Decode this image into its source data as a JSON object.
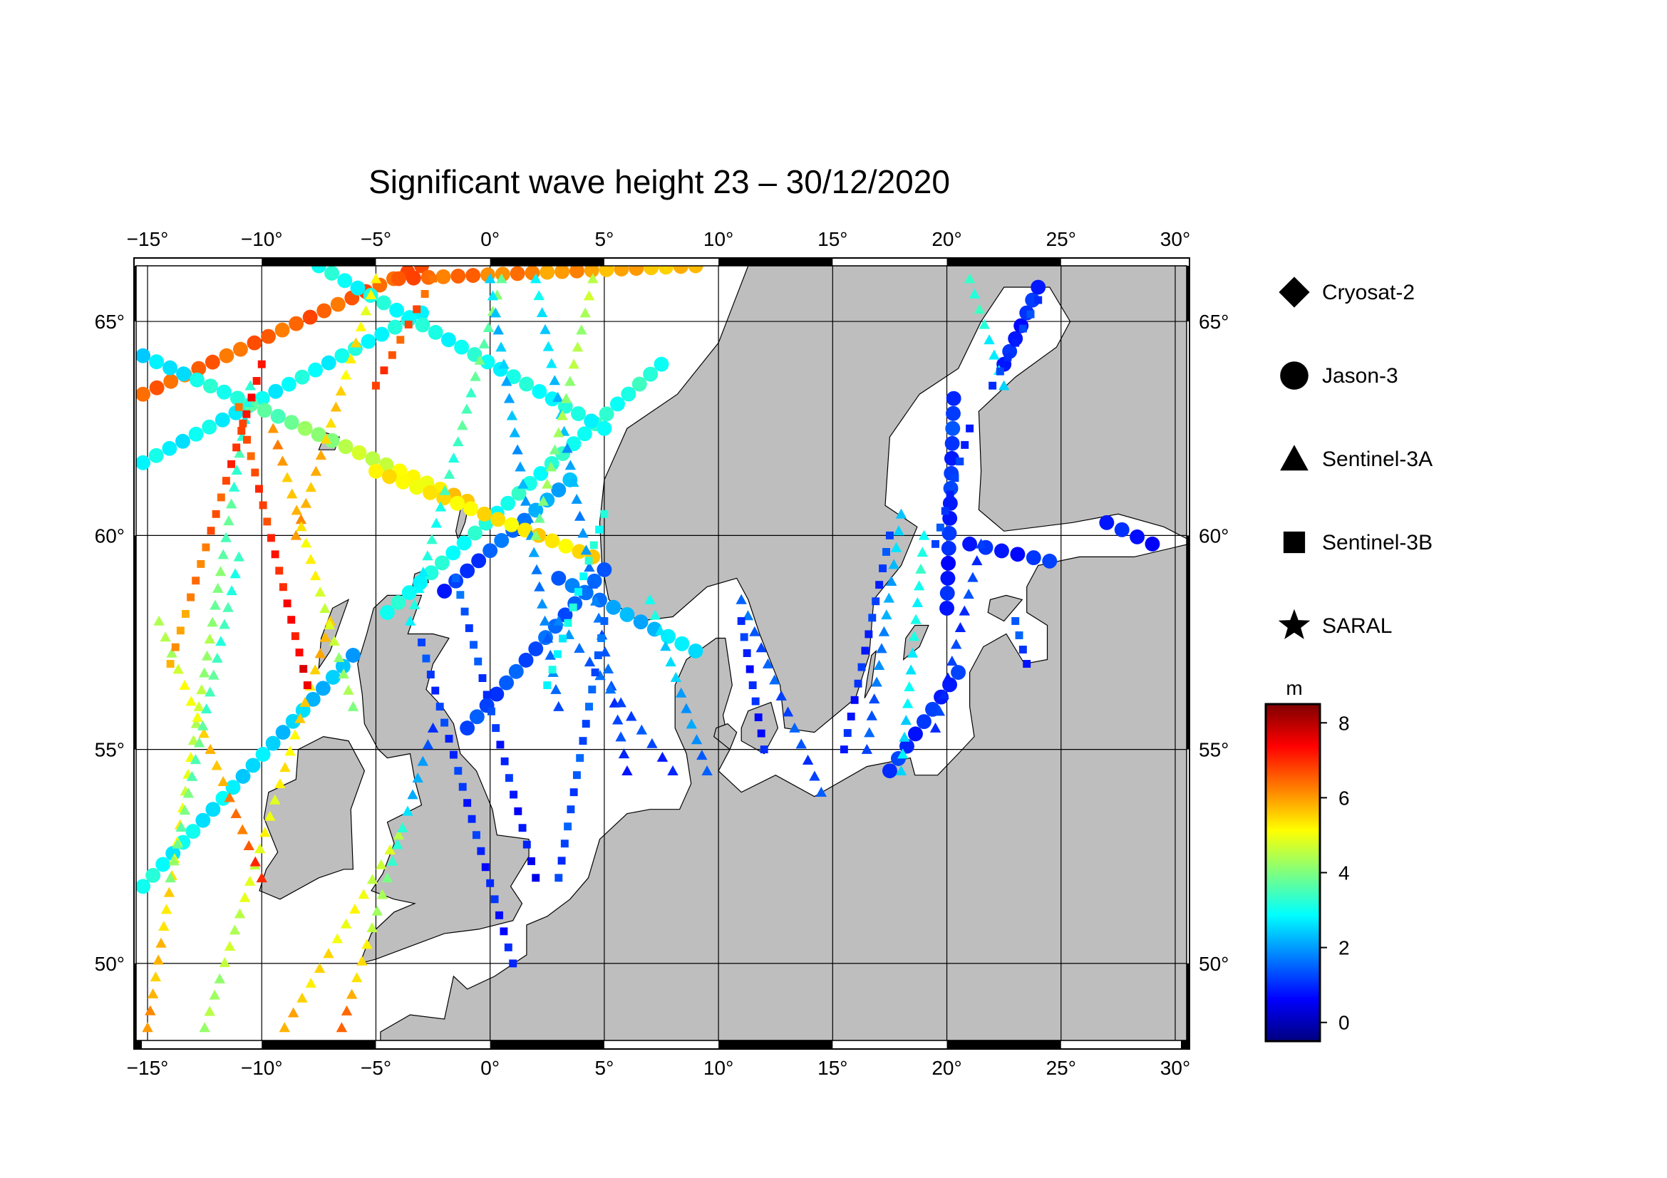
{
  "title": "Significant wave height 23 – 30/12/2020",
  "map": {
    "lon_ticks": [
      -15,
      -10,
      -5,
      0,
      5,
      10,
      15,
      20,
      25,
      30
    ],
    "lat_ticks": [
      50,
      55,
      60,
      65
    ],
    "lon_range": [
      -15.5,
      30.5
    ],
    "lat_range": [
      48.2,
      66.3
    ],
    "grid": true,
    "land_color": "#bebebe",
    "sea_color": "#ffffff",
    "degree_symbol": "°"
  },
  "legend": {
    "items": [
      {
        "label": "Cryosat-2",
        "shape": "diamond"
      },
      {
        "label": "Jason-3",
        "shape": "circle"
      },
      {
        "label": "Sentinel-3A",
        "shape": "triangle"
      },
      {
        "label": "Sentinel-3B",
        "shape": "square"
      },
      {
        "label": "SARAL",
        "shape": "star"
      }
    ]
  },
  "colorbar": {
    "unit": "m",
    "min": -0.5,
    "max": 8.5,
    "ticks": [
      0,
      2,
      4,
      6,
      8
    ],
    "colormap": [
      "#00007f",
      "#0000ff",
      "#007fff",
      "#00ffff",
      "#7fff7f",
      "#ffff00",
      "#ff7f00",
      "#ff0000",
      "#7f0000"
    ]
  },
  "chart_data": {
    "type": "scatter",
    "title": "Significant wave height 23 – 30/12/2020",
    "value_unit": "m",
    "tracks": [
      {
        "satellite": "Jason-3",
        "shape": "circle",
        "from": [
          -15.2,
          51.8
        ],
        "to": [
          -6.0,
          57.2
        ],
        "swh": [
          3.0,
          2.2
        ]
      },
      {
        "satellite": "Jason-3",
        "shape": "circle",
        "from": [
          -15.2,
          61.7
        ],
        "to": [
          -3.0,
          65.2
        ],
        "swh": [
          2.8,
          3.0
        ]
      },
      {
        "satellite": "Jason-3",
        "shape": "circle",
        "from": [
          -15.2,
          63.3
        ],
        "to": [
          -3.0,
          66.3
        ],
        "swh": [
          6.4,
          6.6
        ]
      },
      {
        "satellite": "Jason-3",
        "shape": "circle",
        "from": [
          -15.2,
          64.2
        ],
        "to": [
          -1.0,
          60.8
        ],
        "swh": [
          2.4,
          5.6
        ]
      },
      {
        "satellite": "Jason-3",
        "shape": "circle",
        "from": [
          -2.0,
          58.7
        ],
        "to": [
          3.5,
          61.3
        ],
        "swh": [
          0.8,
          2.4
        ]
      },
      {
        "satellite": "Jason-3",
        "shape": "circle",
        "from": [
          -1.0,
          55.5
        ],
        "to": [
          5.0,
          59.2
        ],
        "swh": [
          1.2,
          1.6
        ]
      },
      {
        "satellite": "Jason-3",
        "shape": "circle",
        "from": [
          -4.5,
          58.2
        ],
        "to": [
          7.5,
          64.0
        ],
        "swh": [
          3.0,
          3.2
        ]
      },
      {
        "satellite": "Jason-3",
        "shape": "circle",
        "from": [
          -7.5,
          66.3
        ],
        "to": [
          5.0,
          62.5
        ],
        "swh": [
          3.0,
          3.0
        ]
      },
      {
        "satellite": "Jason-3",
        "shape": "circle",
        "from": [
          -4.0,
          66.0
        ],
        "to": [
          9.0,
          66.3
        ],
        "swh": [
          6.6,
          5.6
        ]
      },
      {
        "satellite": "Jason-3",
        "shape": "circle",
        "from": [
          -5.0,
          61.5
        ],
        "to": [
          4.5,
          59.5
        ],
        "swh": [
          5.2,
          5.4
        ]
      },
      {
        "satellite": "Jason-3",
        "shape": "circle",
        "from": [
          3.0,
          59.0
        ],
        "to": [
          9.0,
          57.3
        ],
        "swh": [
          1.4,
          2.8
        ]
      },
      {
        "satellite": "Jason-3",
        "shape": "circle",
        "from": [
          20.0,
          58.3
        ],
        "to": [
          20.3,
          63.2
        ],
        "swh": [
          0.8,
          1.2
        ]
      },
      {
        "satellite": "Jason-3",
        "shape": "circle",
        "from": [
          17.5,
          54.5
        ],
        "to": [
          20.5,
          56.8
        ],
        "swh": [
          1.0,
          1.0
        ]
      },
      {
        "satellite": "Jason-3",
        "shape": "circle",
        "from": [
          21.0,
          59.8
        ],
        "to": [
          24.5,
          59.4
        ],
        "swh": [
          0.8,
          1.0
        ]
      },
      {
        "satellite": "Jason-3",
        "shape": "circle",
        "from": [
          22.5,
          64.0
        ],
        "to": [
          24.0,
          65.8
        ],
        "swh": [
          0.8,
          1.0
        ]
      },
      {
        "satellite": "Jason-3",
        "shape": "circle",
        "from": [
          27.0,
          60.3
        ],
        "to": [
          29.0,
          59.8
        ],
        "swh": [
          0.8,
          0.8
        ]
      },
      {
        "satellite": "Sentinel-3A",
        "shape": "triangle",
        "from": [
          -15.0,
          48.5
        ],
        "to": [
          -10.5,
          63.5
        ],
        "swh": [
          6.0,
          3.0
        ]
      },
      {
        "satellite": "Sentinel-3A",
        "shape": "triangle",
        "from": [
          -12.5,
          48.5
        ],
        "to": [
          -7.0,
          58.0
        ],
        "swh": [
          4.2,
          5.8
        ]
      },
      {
        "satellite": "Sentinel-3A",
        "shape": "triangle",
        "from": [
          -9.0,
          48.5
        ],
        "to": [
          -4.0,
          53.0
        ],
        "swh": [
          5.8,
          4.5
        ]
      },
      {
        "satellite": "Sentinel-3A",
        "shape": "triangle",
        "from": [
          -6.5,
          48.5
        ],
        "to": [
          -2.5,
          55.5
        ],
        "swh": [
          6.5,
          1.2
        ]
      },
      {
        "satellite": "Sentinel-3A",
        "shape": "triangle",
        "from": [
          -10.0,
          52.0
        ],
        "to": [
          -14.5,
          58.0
        ],
        "swh": [
          7.0,
          4.2
        ]
      },
      {
        "satellite": "Sentinel-3A",
        "shape": "triangle",
        "from": [
          -14.0,
          52.0
        ],
        "to": [
          -11.0,
          59.5
        ],
        "swh": [
          4.0,
          3.2
        ]
      },
      {
        "satellite": "Sentinel-3A",
        "shape": "triangle",
        "from": [
          -8.5,
          60.0
        ],
        "to": [
          -5.0,
          66.0
        ],
        "swh": [
          6.0,
          5.0
        ]
      },
      {
        "satellite": "Sentinel-3A",
        "shape": "triangle",
        "from": [
          -6.0,
          56.0
        ],
        "to": [
          -9.5,
          62.5
        ],
        "swh": [
          4.0,
          6.2
        ]
      },
      {
        "satellite": "Sentinel-3A",
        "shape": "triangle",
        "from": [
          -3.5,
          58.0
        ],
        "to": [
          0.5,
          66.0
        ],
        "swh": [
          2.8,
          4.0
        ]
      },
      {
        "satellite": "Sentinel-3A",
        "shape": "triangle",
        "from": [
          0.0,
          66.0
        ],
        "to": [
          3.0,
          56.0
        ],
        "swh": [
          2.5,
          1.5
        ]
      },
      {
        "satellite": "Sentinel-3A",
        "shape": "triangle",
        "from": [
          2.0,
          66.0
        ],
        "to": [
          6.0,
          54.5
        ],
        "swh": [
          2.8,
          1.0
        ]
      },
      {
        "satellite": "Sentinel-3A",
        "shape": "triangle",
        "from": [
          3.0,
          58.0
        ],
        "to": [
          8.0,
          54.5
        ],
        "swh": [
          1.8,
          1.0
        ]
      },
      {
        "satellite": "Sentinel-3A",
        "shape": "triangle",
        "from": [
          4.5,
          66.0
        ],
        "to": [
          2.0,
          60.0
        ],
        "swh": [
          4.5,
          4.0
        ]
      },
      {
        "satellite": "Sentinel-3A",
        "shape": "triangle",
        "from": [
          7.0,
          58.5
        ],
        "to": [
          9.5,
          54.5
        ],
        "swh": [
          3.0,
          1.5
        ]
      },
      {
        "satellite": "Sentinel-3A",
        "shape": "triangle",
        "from": [
          11.0,
          58.5
        ],
        "to": [
          14.5,
          54.0
        ],
        "swh": [
          1.5,
          1.2
        ]
      },
      {
        "satellite": "Sentinel-3A",
        "shape": "triangle",
        "from": [
          16.5,
          55.0
        ],
        "to": [
          18.0,
          60.5
        ],
        "swh": [
          1.2,
          2.6
        ]
      },
      {
        "satellite": "Sentinel-3A",
        "shape": "triangle",
        "from": [
          18.0,
          54.5
        ],
        "to": [
          19.0,
          60.0
        ],
        "swh": [
          2.5,
          3.2
        ]
      },
      {
        "satellite": "Sentinel-3A",
        "shape": "triangle",
        "from": [
          19.5,
          55.5
        ],
        "to": [
          21.5,
          59.8
        ],
        "swh": [
          1.0,
          1.2
        ]
      },
      {
        "satellite": "Sentinel-3A",
        "shape": "triangle",
        "from": [
          22.5,
          63.5
        ],
        "to": [
          21.0,
          66.0
        ],
        "swh": [
          2.5,
          3.5
        ]
      },
      {
        "satellite": "Sentinel-3B",
        "shape": "square",
        "from": [
          -14.0,
          57.0
        ],
        "to": [
          -10.0,
          64.0
        ],
        "swh": [
          5.8,
          7.4
        ]
      },
      {
        "satellite": "Sentinel-3B",
        "shape": "square",
        "from": [
          -8.0,
          56.5
        ],
        "to": [
          -11.0,
          63.0
        ],
        "swh": [
          7.5,
          6.5
        ]
      },
      {
        "satellite": "Sentinel-3B",
        "shape": "square",
        "from": [
          -5.0,
          63.5
        ],
        "to": [
          -2.5,
          66.0
        ],
        "swh": [
          6.8,
          6.5
        ]
      },
      {
        "satellite": "Sentinel-3B",
        "shape": "square",
        "from": [
          -3.0,
          57.5
        ],
        "to": [
          1.0,
          50.0
        ],
        "swh": [
          1.2,
          0.8
        ]
      },
      {
        "satellite": "Sentinel-3B",
        "shape": "square",
        "from": [
          -1.5,
          59.0
        ],
        "to": [
          2.0,
          52.0
        ],
        "swh": [
          1.5,
          0.6
        ]
      },
      {
        "satellite": "Sentinel-3B",
        "shape": "square",
        "from": [
          2.5,
          56.5
        ],
        "to": [
          5.0,
          60.5
        ],
        "swh": [
          2.8,
          3.2
        ]
      },
      {
        "satellite": "Sentinel-3B",
        "shape": "square",
        "from": [
          5.0,
          58.0
        ],
        "to": [
          3.0,
          52.0
        ],
        "swh": [
          1.5,
          1.2
        ]
      },
      {
        "satellite": "Sentinel-3B",
        "shape": "square",
        "from": [
          11.0,
          58.0
        ],
        "to": [
          12.0,
          55.0
        ],
        "swh": [
          1.0,
          0.8
        ]
      },
      {
        "satellite": "Sentinel-3B",
        "shape": "square",
        "from": [
          15.5,
          55.0
        ],
        "to": [
          17.5,
          60.0
        ],
        "swh": [
          0.8,
          1.2
        ]
      },
      {
        "satellite": "Sentinel-3B",
        "shape": "square",
        "from": [
          19.5,
          59.8
        ],
        "to": [
          21.0,
          62.5
        ],
        "swh": [
          1.2,
          1.0
        ]
      },
      {
        "satellite": "Sentinel-3B",
        "shape": "square",
        "from": [
          22.0,
          63.5
        ],
        "to": [
          24.0,
          65.5
        ],
        "swh": [
          1.0,
          1.2
        ]
      },
      {
        "satellite": "Sentinel-3B",
        "shape": "square",
        "from": [
          23.0,
          58.0
        ],
        "to": [
          23.5,
          57.0
        ],
        "swh": [
          1.4,
          1.0
        ]
      }
    ]
  }
}
